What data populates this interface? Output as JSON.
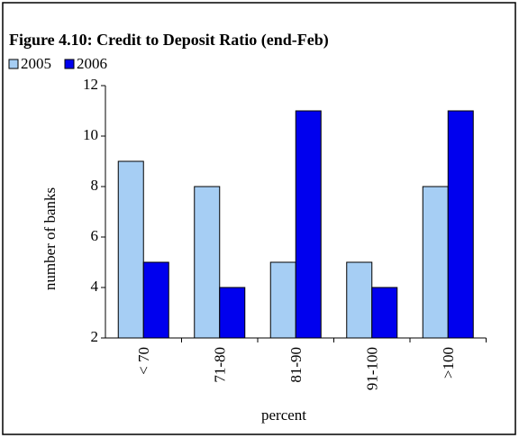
{
  "chart_data": {
    "type": "bar",
    "title": "Figure 4.10: Credit to Deposit Ratio (end-Feb)",
    "x_label": "percent",
    "y_label": "number of banks",
    "categories": [
      "< 70",
      "71-80",
      "81-90",
      "91-100",
      ">100"
    ],
    "series": [
      {
        "name": "2005",
        "color": "#a6cef4",
        "values": [
          9,
          8,
          5,
          5,
          8
        ]
      },
      {
        "name": "2006",
        "color": "#0000ee",
        "values": [
          5,
          4,
          11,
          4,
          11
        ]
      }
    ],
    "ylim": [
      2,
      12
    ],
    "yticks": [
      2,
      4,
      6,
      8,
      10,
      12
    ],
    "legend": "top-left"
  }
}
